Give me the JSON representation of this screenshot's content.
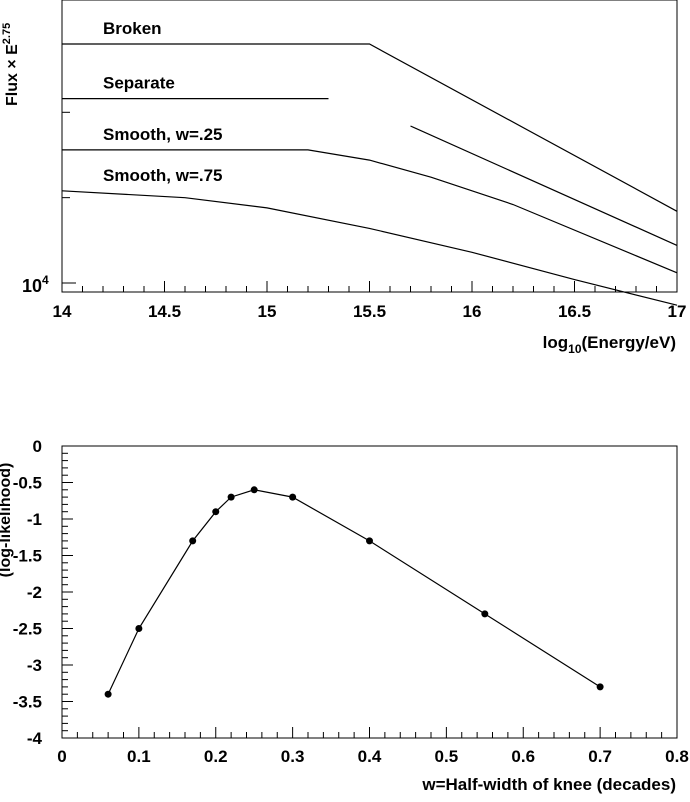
{
  "chart_data": [
    {
      "type": "line",
      "ylabel": "Flux × E",
      "ylabel_sup": "2.75",
      "xlabel_pre": "log",
      "xlabel_sub": "10",
      "xlabel_post": "(Energy/eV)",
      "ytick_base": "10",
      "ytick_exp": "4",
      "xlim": [
        14,
        17
      ],
      "ylog": true,
      "grid": false,
      "x_ticks": [
        "14",
        "14.5",
        "15",
        "15.5",
        "16",
        "16.5",
        "17"
      ],
      "series": [
        {
          "name": "Broken",
          "x": [
            14,
            15.5,
            17
          ],
          "y": [
            1.7,
            1.7,
            1.21
          ]
        },
        {
          "name": "Separate",
          "segments": [
            {
              "x": [
                14,
                15.3
              ],
              "y": [
                1.54,
                1.54
              ]
            },
            {
              "x": [
                15.7,
                17
              ],
              "y": [
                1.46,
                1.11
              ]
            }
          ]
        },
        {
          "name": "Smooth, w=.25",
          "x": [
            14,
            15.2,
            15.5,
            15.8,
            16.2,
            17
          ],
          "y": [
            1.39,
            1.39,
            1.36,
            1.31,
            1.23,
            1.03
          ]
        },
        {
          "name": "Smooth, w=.75",
          "x": [
            14,
            14.6,
            15.0,
            15.5,
            16.0,
            16.5,
            17
          ],
          "y": [
            1.27,
            1.25,
            1.22,
            1.16,
            1.09,
            1.01,
            0.935
          ]
        }
      ]
    },
    {
      "type": "line",
      "ylabel": "(log-likelihood)",
      "xlabel": "w=Half-width of knee (decades)",
      "xlim": [
        0,
        0.8
      ],
      "ylim": [
        -4,
        0
      ],
      "grid": false,
      "x_ticks": [
        "0",
        "0.1",
        "0.2",
        "0.3",
        "0.4",
        "0.5",
        "0.6",
        "0.7",
        "0.8"
      ],
      "y_ticks": [
        "0",
        "-0.5",
        "-1",
        "-1.5",
        "-2",
        "-2.5",
        "-3",
        "-3.5",
        "-4"
      ],
      "series": [
        {
          "x": [
            0.06,
            0.1,
            0.17,
            0.2,
            0.22,
            0.25,
            0.3,
            0.4,
            0.55,
            0.7
          ],
          "y": [
            -3.4,
            -2.5,
            -1.3,
            -0.9,
            -0.7,
            -0.6,
            -0.7,
            -1.3,
            -2.3,
            -3.3
          ]
        }
      ]
    }
  ]
}
